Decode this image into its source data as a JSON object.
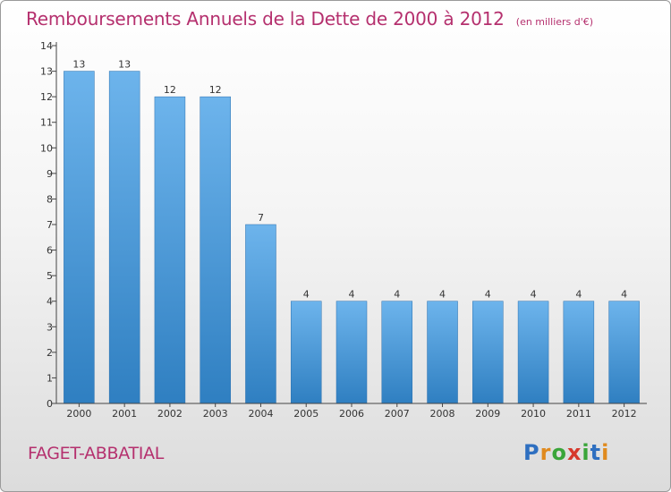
{
  "chart_data": {
    "type": "bar",
    "title": "Remboursements Annuels de la Dette de 2000 à 2012",
    "unit_label": "(en milliers d'€)",
    "categories": [
      "2000",
      "2001",
      "2002",
      "2003",
      "2004",
      "2005",
      "2006",
      "2007",
      "2008",
      "2009",
      "2010",
      "2011",
      "2012"
    ],
    "values": [
      13,
      13,
      12,
      12,
      7,
      4,
      4,
      4,
      4,
      4,
      4,
      4,
      4
    ],
    "ylim": [
      0,
      14
    ],
    "yticks": [
      0,
      1,
      2,
      3,
      4,
      5,
      6,
      7,
      8,
      9,
      10,
      11,
      12,
      13,
      14
    ],
    "xlabel": "",
    "ylabel": "",
    "grid": false,
    "bar_color": "#2f7fc1",
    "bar_color_light": "#6db4ec"
  },
  "commune": "FAGET-ABBATIAL",
  "logo": {
    "letters": [
      "P",
      "r",
      "o",
      "x",
      "i",
      "t",
      "i"
    ],
    "colors": [
      "#2e6fc0",
      "#e08a1e",
      "#3aa53a",
      "#d6382b",
      "#3aa53a",
      "#2e6fc0",
      "#e08a1e"
    ]
  }
}
